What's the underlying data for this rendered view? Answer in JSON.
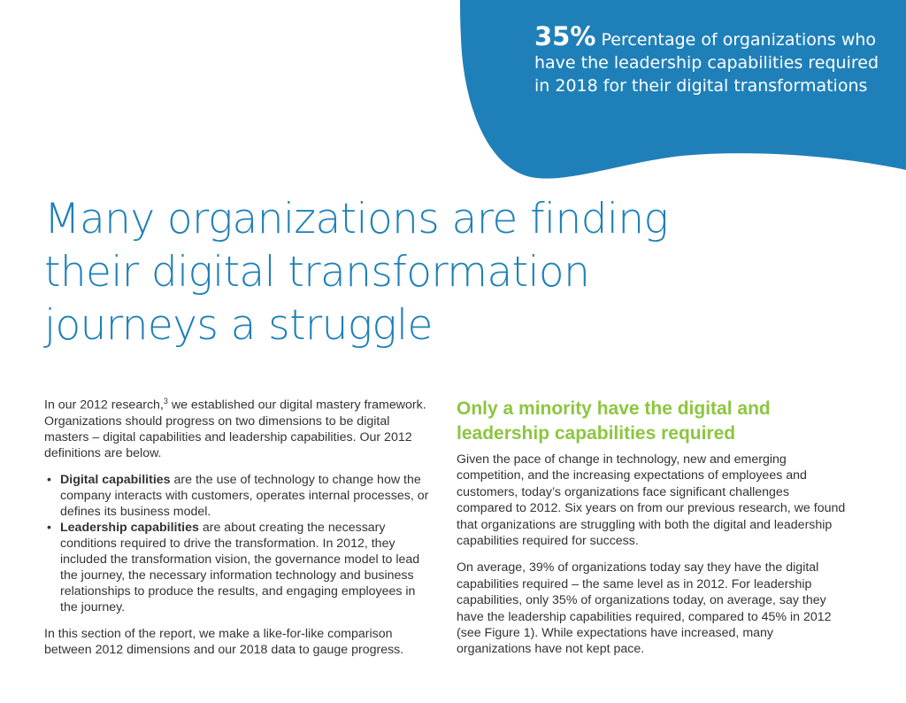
{
  "callout": {
    "stat": "35%",
    "text": "Percentage of organizations who have the leadership capabilities required in 2018 for their digital transformations"
  },
  "headline": "Many organizations are finding their digital transformation journeys a struggle",
  "left": {
    "intro_before": "In our 2012 research,",
    "footnote": "3",
    "intro_after": " we established our digital mastery framework. Organizations should progress on two dimensions to be digital masters – digital capabilities and leadership capabilities. Our 2012 definitions are below.",
    "bullet_symbol": "•",
    "bullets": [
      {
        "term": "Digital capabilities",
        "text": " are the use of technology to change how the company interacts with customers, operates internal processes, or defines its business model."
      },
      {
        "term": "Leadership capabilities",
        "text": " are about creating the necessary conditions required to drive the transformation. In 2012, they included the transformation vision, the governance model to lead the journey, the necessary information technology and business relationships to produce the results, and engaging employees in the journey."
      }
    ],
    "closing": "In this section of the report, we make a like-for-like comparison between 2012 dimensions and our 2018 data to gauge progress."
  },
  "right": {
    "subheading": "Only a minority have the digital and leadership capabilities required",
    "paragraph1": "Given the pace of change in technology, new and emerging competition, and the increasing expectations of employees and customers, today’s organizations face significant challenges compared to 2012. Six years on from our previous research, we found that organizations are struggling with both the digital and leadership capabilities required for success.",
    "paragraph2": "On average, 39% of organizations today say they have the digital capabilities required – the same level as in 2012. For leadership capabilities, only 35% of organizations today, on average, say they have the leadership capabilities required, compared to 45% in 2012 (see Figure 1). While expectations have increased, many organizations have not kept pace."
  },
  "colors": {
    "blob": "#1f80b9",
    "headline": "#1f80b9",
    "subheading": "#8cc63f",
    "body": "#333333"
  }
}
